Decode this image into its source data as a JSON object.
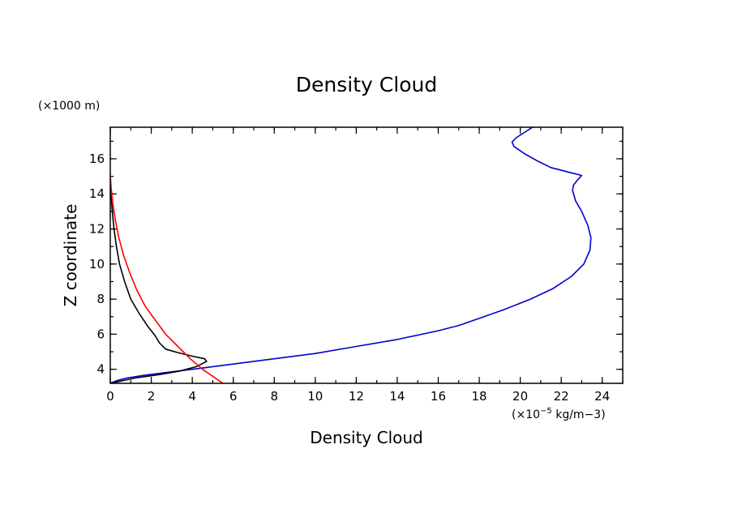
{
  "chart_data": {
    "type": "line",
    "title": "Density Cloud",
    "xlabel": "Density Cloud",
    "ylabel": "Z coordinate",
    "x_unit_prefix": "(×10",
    "x_unit_exponent": "−5",
    "x_unit_suffix": " kg/m",
    "x_unit_tail": "−3)",
    "y_unit": "(×1000 m)",
    "xlim": [
      0,
      25
    ],
    "ylim": [
      3.2,
      17.8
    ],
    "x_ticks": [
      0,
      2,
      4,
      6,
      8,
      10,
      12,
      14,
      16,
      18,
      20,
      22,
      24
    ],
    "y_ticks": [
      4,
      6,
      8,
      10,
      12,
      14,
      16
    ],
    "x_minor_step": 1,
    "y_minor_step": 1,
    "grid": false,
    "series": [
      {
        "color": "#0000cc",
        "points": [
          [
            0,
            3.2
          ],
          [
            0.3,
            3.35
          ],
          [
            0.8,
            3.5
          ],
          [
            1.6,
            3.65
          ],
          [
            2.6,
            3.8
          ],
          [
            4.0,
            4.0
          ],
          [
            6.0,
            4.3
          ],
          [
            8.0,
            4.6
          ],
          [
            10.0,
            4.9
          ],
          [
            12.0,
            5.3
          ],
          [
            14.0,
            5.7
          ],
          [
            16.0,
            6.2
          ],
          [
            17.0,
            6.5
          ],
          [
            18.0,
            6.9
          ],
          [
            19.2,
            7.4
          ],
          [
            20.5,
            8.0
          ],
          [
            21.6,
            8.6
          ],
          [
            22.5,
            9.3
          ],
          [
            23.1,
            10.0
          ],
          [
            23.4,
            10.8
          ],
          [
            23.45,
            11.5
          ],
          [
            23.3,
            12.2
          ],
          [
            23.0,
            13.0
          ],
          [
            22.7,
            13.6
          ],
          [
            22.55,
            14.2
          ],
          [
            22.6,
            14.5
          ],
          [
            22.8,
            14.8
          ],
          [
            23.0,
            15.05
          ],
          [
            22.5,
            15.2
          ],
          [
            21.5,
            15.5
          ],
          [
            20.8,
            15.9
          ],
          [
            20.2,
            16.3
          ],
          [
            19.7,
            16.7
          ],
          [
            19.6,
            16.95
          ],
          [
            19.8,
            17.2
          ],
          [
            20.2,
            17.5
          ],
          [
            20.6,
            17.8
          ]
        ]
      },
      {
        "color": "#000000",
        "points": [
          [
            0,
            3.2
          ],
          [
            0.4,
            3.3
          ],
          [
            1.2,
            3.5
          ],
          [
            2.4,
            3.7
          ],
          [
            3.4,
            3.9
          ],
          [
            4.2,
            4.15
          ],
          [
            4.7,
            4.45
          ],
          [
            4.6,
            4.6
          ],
          [
            4.0,
            4.75
          ],
          [
            3.3,
            4.95
          ],
          [
            2.7,
            5.15
          ],
          [
            2.4,
            5.5
          ],
          [
            2.2,
            5.9
          ],
          [
            1.8,
            6.5
          ],
          [
            1.4,
            7.2
          ],
          [
            1.0,
            8.0
          ],
          [
            0.7,
            9.0
          ],
          [
            0.45,
            10.0
          ],
          [
            0.3,
            11.0
          ],
          [
            0.18,
            12.0
          ],
          [
            0.1,
            13.0
          ],
          [
            0.04,
            14.0
          ],
          [
            0.0,
            15.0
          ]
        ]
      },
      {
        "color": "#ff0000",
        "points": [
          [
            5.5,
            3.2
          ],
          [
            5.0,
            3.6
          ],
          [
            4.5,
            4.0
          ],
          [
            3.9,
            4.6
          ],
          [
            3.3,
            5.3
          ],
          [
            2.7,
            6.0
          ],
          [
            2.2,
            6.8
          ],
          [
            1.7,
            7.6
          ],
          [
            1.3,
            8.5
          ],
          [
            0.95,
            9.5
          ],
          [
            0.65,
            10.5
          ],
          [
            0.42,
            11.5
          ],
          [
            0.25,
            12.5
          ],
          [
            0.12,
            13.5
          ],
          [
            0.04,
            14.4
          ],
          [
            0.0,
            15.0
          ]
        ]
      }
    ]
  }
}
